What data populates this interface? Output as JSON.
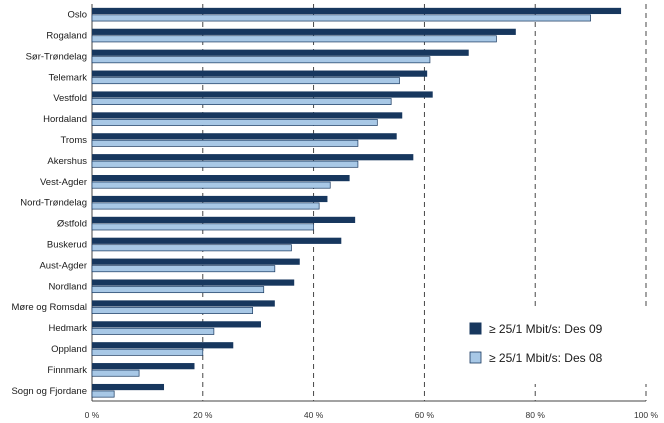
{
  "chart_data": {
    "type": "bar",
    "orientation": "horizontal",
    "categories": [
      "Oslo",
      "Rogaland",
      "Sør-Trøndelag",
      "Telemark",
      "Vestfold",
      "Hordaland",
      "Troms",
      "Akershus",
      "Vest-Agder",
      "Nord-Trøndelag",
      "Østfold",
      "Buskerud",
      "Aust-Agder",
      "Nordland",
      "Møre og Romsdal",
      "Hedmark",
      "Oppland",
      "Finnmark",
      "Sogn og Fjordane"
    ],
    "series": [
      {
        "name": "≥ 25/1 Mbit/s: Des 09",
        "color": "#17375e",
        "values": [
          95.5,
          76.5,
          68,
          60.5,
          61.5,
          56,
          55,
          58,
          46.5,
          42.5,
          47.5,
          45,
          37.5,
          36.5,
          33,
          30.5,
          25.5,
          18.5,
          13
        ]
      },
      {
        "name": "≥ 25/1 Mbit/s: Des 08",
        "color": "#a8c8e6",
        "values": [
          90,
          73,
          61,
          55.5,
          54,
          51.5,
          48,
          48,
          43,
          41,
          40,
          36,
          33,
          31,
          29,
          22,
          20,
          8.5,
          4
        ]
      }
    ],
    "xlim": [
      0,
      100
    ],
    "xticks": [
      "0 %",
      "20 %",
      "40 %",
      "60 %",
      "80 %",
      "100 %"
    ],
    "grid": "vertical-dashed",
    "legend_position": "bottom-right"
  }
}
